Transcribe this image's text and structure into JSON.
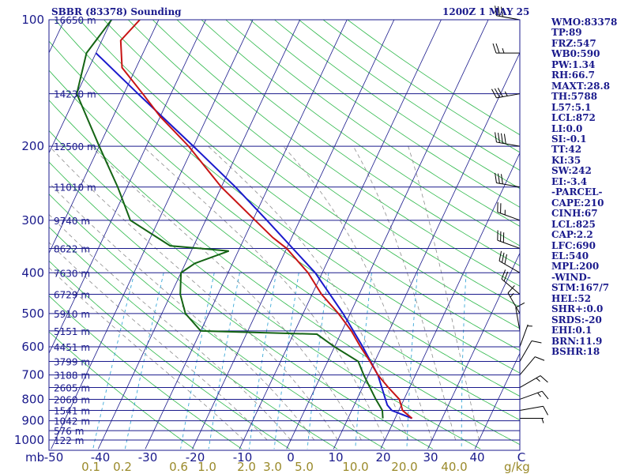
{
  "header": {
    "title": "SBBR (83378) Sounding",
    "datetime": "1200Z  1 MAY 25"
  },
  "indices": [
    "WMO:83378",
    "TP:89",
    "FRZ:547",
    "WB0:590",
    "PW:1.34",
    "RH:66.7",
    "MAXT:28.8",
    "TH:5788",
    "L57:5.1",
    "LCL:872",
    "LI:0.0",
    "SI:-0.1",
    "TT:42",
    "KI:35",
    "SW:242",
    "EI:-3.4",
    "-PARCEL-",
    "CAPE:210",
    "CINH:67",
    "LCL:825",
    "CAP:2.2",
    "LFC:690",
    "EL:540",
    "MPL:200",
    "-WIND-",
    "STM:167/7",
    "HEL:52",
    "SHR+:0.0",
    "SRDS:-20",
    "EHI:0.1",
    "BRN:11.9",
    "BSHR:18"
  ],
  "colors": {
    "isobar": "#1a1a8c",
    "isotherm": "#1a1a8c",
    "dry_adiabat": "#2db84a",
    "moist_adiabat": "#8c8c8c",
    "mixing_ratio": "#3aa8d8",
    "temperature": "#c81414",
    "dewpoint": "#146414",
    "parcel": "#1a1acc",
    "wind": "#000000",
    "mixing_label": "#9a8a2a",
    "text": "#1a1a8c"
  },
  "chart_data": {
    "type": "skew-t",
    "pressure_unit": "mb",
    "temperature_unit": "°C",
    "mixing_unit": "g/kg",
    "pressure_ticks": [
      100,
      200,
      300,
      400,
      500,
      600,
      700,
      800,
      900,
      1000
    ],
    "temperature_ticks": [
      -50,
      -40,
      -30,
      -20,
      -10,
      0,
      10,
      20,
      30,
      40
    ],
    "mixing_ratio_ticks": [
      "0.1",
      "0.2",
      "0.6",
      "1.0",
      "2.0",
      "3.0",
      "5.0",
      "10.0",
      "20.0",
      "40.0"
    ],
    "height_levels": [
      {
        "p": 100,
        "label": "16650 m"
      },
      {
        "p": 150,
        "label": "14230 m"
      },
      {
        "p": 200,
        "label": "12500 m"
      },
      {
        "p": 250,
        "label": "11010 m"
      },
      {
        "p": 300,
        "label": "9740 m"
      },
      {
        "p": 350,
        "label": "8622 m"
      },
      {
        "p": 400,
        "label": "7630 m"
      },
      {
        "p": 450,
        "label": "6729 m"
      },
      {
        "p": 500,
        "label": "5910 m"
      },
      {
        "p": 550,
        "label": "5151 m"
      },
      {
        "p": 600,
        "label": "4451 m"
      },
      {
        "p": 650,
        "label": "3799 m"
      },
      {
        "p": 700,
        "label": "3188 m"
      },
      {
        "p": 750,
        "label": "2605 m"
      },
      {
        "p": 800,
        "label": "2060 m"
      },
      {
        "p": 850,
        "label": "1541 m"
      },
      {
        "p": 900,
        "label": "1042 m"
      },
      {
        "p": 950,
        "label": "576 m"
      },
      {
        "p": 1000,
        "label": "122 m"
      }
    ],
    "temperature": [
      {
        "p": 888,
        "t": 23.6
      },
      {
        "p": 850,
        "t": 20.8
      },
      {
        "p": 800,
        "t": 19.0
      },
      {
        "p": 750,
        "t": 15.5
      },
      {
        "p": 700,
        "t": 12.0
      },
      {
        "p": 650,
        "t": 9.0
      },
      {
        "p": 600,
        "t": 5.5
      },
      {
        "p": 550,
        "t": 2.0
      },
      {
        "p": 500,
        "t": -2.5
      },
      {
        "p": 450,
        "t": -8.0
      },
      {
        "p": 400,
        "t": -13.0
      },
      {
        "p": 350,
        "t": -20.0
      },
      {
        "p": 330,
        "t": -24.0
      },
      {
        "p": 300,
        "t": -29.5
      },
      {
        "p": 250,
        "t": -40.0
      },
      {
        "p": 200,
        "t": -51.0
      },
      {
        "p": 170,
        "t": -60.0
      },
      {
        "p": 150,
        "t": -66.0
      },
      {
        "p": 130,
        "t": -73.0
      },
      {
        "p": 112,
        "t": -76.0
      },
      {
        "p": 100,
        "t": -74.0
      }
    ],
    "dewpoint": [
      {
        "p": 888,
        "t": 17.4
      },
      {
        "p": 850,
        "t": 16.5
      },
      {
        "p": 800,
        "t": 14.0
      },
      {
        "p": 700,
        "t": 9.0
      },
      {
        "p": 650,
        "t": 6.5
      },
      {
        "p": 600,
        "t": 0.0
      },
      {
        "p": 560,
        "t": -5.0
      },
      {
        "p": 550,
        "t": -30.0
      },
      {
        "p": 500,
        "t": -35.0
      },
      {
        "p": 450,
        "t": -38.0
      },
      {
        "p": 400,
        "t": -40.0
      },
      {
        "p": 380,
        "t": -38.0
      },
      {
        "p": 355,
        "t": -32.0
      },
      {
        "p": 345,
        "t": -45.0
      },
      {
        "p": 300,
        "t": -56.0
      },
      {
        "p": 250,
        "t": -62.0
      },
      {
        "p": 200,
        "t": -70.0
      },
      {
        "p": 150,
        "t": -80.0
      },
      {
        "p": 120,
        "t": -82.0
      },
      {
        "p": 100,
        "t": -80.0
      }
    ],
    "parcel": [
      {
        "p": 888,
        "t": 23.6
      },
      {
        "p": 850,
        "t": 18.5
      },
      {
        "p": 825,
        "t": 17.0
      },
      {
        "p": 700,
        "t": 12.0
      },
      {
        "p": 600,
        "t": 6.0
      },
      {
        "p": 500,
        "t": -1.5
      },
      {
        "p": 400,
        "t": -11.5
      },
      {
        "p": 300,
        "t": -27.0
      },
      {
        "p": 250,
        "t": -37.0
      },
      {
        "p": 200,
        "t": -50.0
      },
      {
        "p": 150,
        "t": -67.0
      },
      {
        "p": 120,
        "t": -80.0
      }
    ],
    "wind_barbs": [
      {
        "p": 888,
        "dir": 90,
        "kt": 5
      },
      {
        "p": 850,
        "dir": 80,
        "kt": 10
      },
      {
        "p": 800,
        "dir": 70,
        "kt": 15
      },
      {
        "p": 750,
        "dir": 60,
        "kt": 15
      },
      {
        "p": 700,
        "dir": 40,
        "kt": 10
      },
      {
        "p": 650,
        "dir": 30,
        "kt": 10
      },
      {
        "p": 600,
        "dir": 20,
        "kt": 5
      },
      {
        "p": 550,
        "dir": 350,
        "kt": 10
      },
      {
        "p": 500,
        "dir": 330,
        "kt": 15
      },
      {
        "p": 450,
        "dir": 310,
        "kt": 20
      },
      {
        "p": 400,
        "dir": 300,
        "kt": 30
      },
      {
        "p": 350,
        "dir": 290,
        "kt": 30
      },
      {
        "p": 300,
        "dir": 290,
        "kt": 25
      },
      {
        "p": 250,
        "dir": 280,
        "kt": 30
      },
      {
        "p": 200,
        "dir": 280,
        "kt": 40
      },
      {
        "p": 150,
        "dir": 260,
        "kt": 35
      },
      {
        "p": 120,
        "dir": 270,
        "kt": 25
      },
      {
        "p": 100,
        "dir": 280,
        "kt": 30
      }
    ]
  }
}
